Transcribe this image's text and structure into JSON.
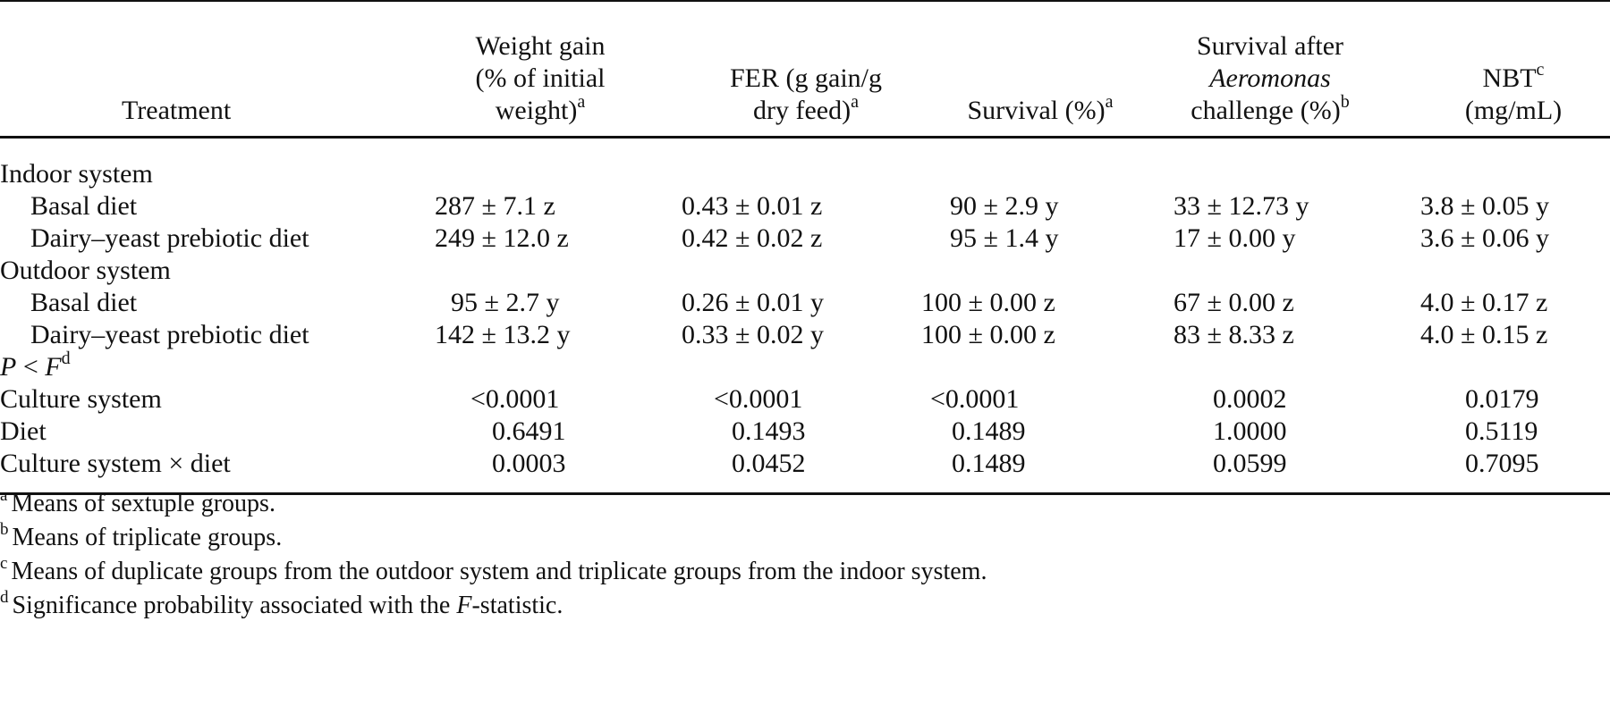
{
  "table": {
    "headers": {
      "treatment": "Treatment",
      "weight_gain": [
        "Weight gain",
        "(% of initial",
        "weight)"
      ],
      "weight_gain_sup": "a",
      "fer": [
        "FER (g gain/g",
        "dry feed)"
      ],
      "fer_sup": "a",
      "survival": "Survival (%)",
      "survival_sup": "a",
      "challenge": [
        "Survival after",
        "Aeromonas",
        "challenge (%)"
      ],
      "challenge_sup": "b",
      "nbt": "NBT",
      "nbt_sup": "c",
      "nbt_unit": "(mg/mL)"
    },
    "sections": [
      {
        "label": "Indoor system",
        "rows": [
          {
            "label": "Basal diet",
            "values": [
              "287 ± 7.1 z",
              "0.43 ± 0.01 z",
              "90 ± 2.9 y",
              "33 ± 12.73 y",
              "3.8 ± 0.05 y"
            ]
          },
          {
            "label": "Dairy–yeast prebiotic diet",
            "values": [
              "249 ± 12.0 z",
              "0.42 ± 0.02 z",
              "95 ± 1.4 y",
              "17 ± 0.00 y",
              "3.6 ± 0.06 y"
            ]
          }
        ]
      },
      {
        "label": "Outdoor system",
        "rows": [
          {
            "label": "Basal diet",
            "values": [
              "95 ± 2.7 y",
              "0.26 ± 0.01 y",
              "100 ± 0.00 z",
              "67 ± 0.00 z",
              "4.0 ± 0.17 z"
            ]
          },
          {
            "label": "Dairy–yeast prebiotic diet",
            "values": [
              "142 ± 13.2 y",
              "0.33 ± 0.02 y",
              "100 ± 0.00 z",
              "83 ± 8.33 z",
              "4.0 ± 0.15 z"
            ]
          }
        ]
      }
    ],
    "pf_label": {
      "p": "P",
      "op": " < ",
      "f": "F",
      "sup": "d"
    },
    "pf_rows": [
      {
        "label": "Culture system",
        "values": [
          "<0.0001",
          "<0.0001",
          "<0.0001",
          "0.0002",
          "0.0179"
        ]
      },
      {
        "label": "Diet",
        "values": [
          "0.6491",
          "0.1493",
          "0.1489",
          "1.0000",
          "0.5119"
        ]
      },
      {
        "label": "Culture system × diet",
        "values": [
          "0.0003",
          "0.0452",
          "0.1489",
          "0.0599",
          "0.7095"
        ]
      }
    ]
  },
  "footnotes": [
    {
      "mark": "a",
      "text": "Means of sextuple groups."
    },
    {
      "mark": "b",
      "text": "Means of triplicate groups."
    },
    {
      "mark": "c",
      "text": "Means of duplicate groups from the outdoor system and triplicate groups from the indoor system."
    },
    {
      "mark": "d",
      "pre": "Significance probability associated with the ",
      "italic": "F",
      "post": "-statistic."
    }
  ]
}
